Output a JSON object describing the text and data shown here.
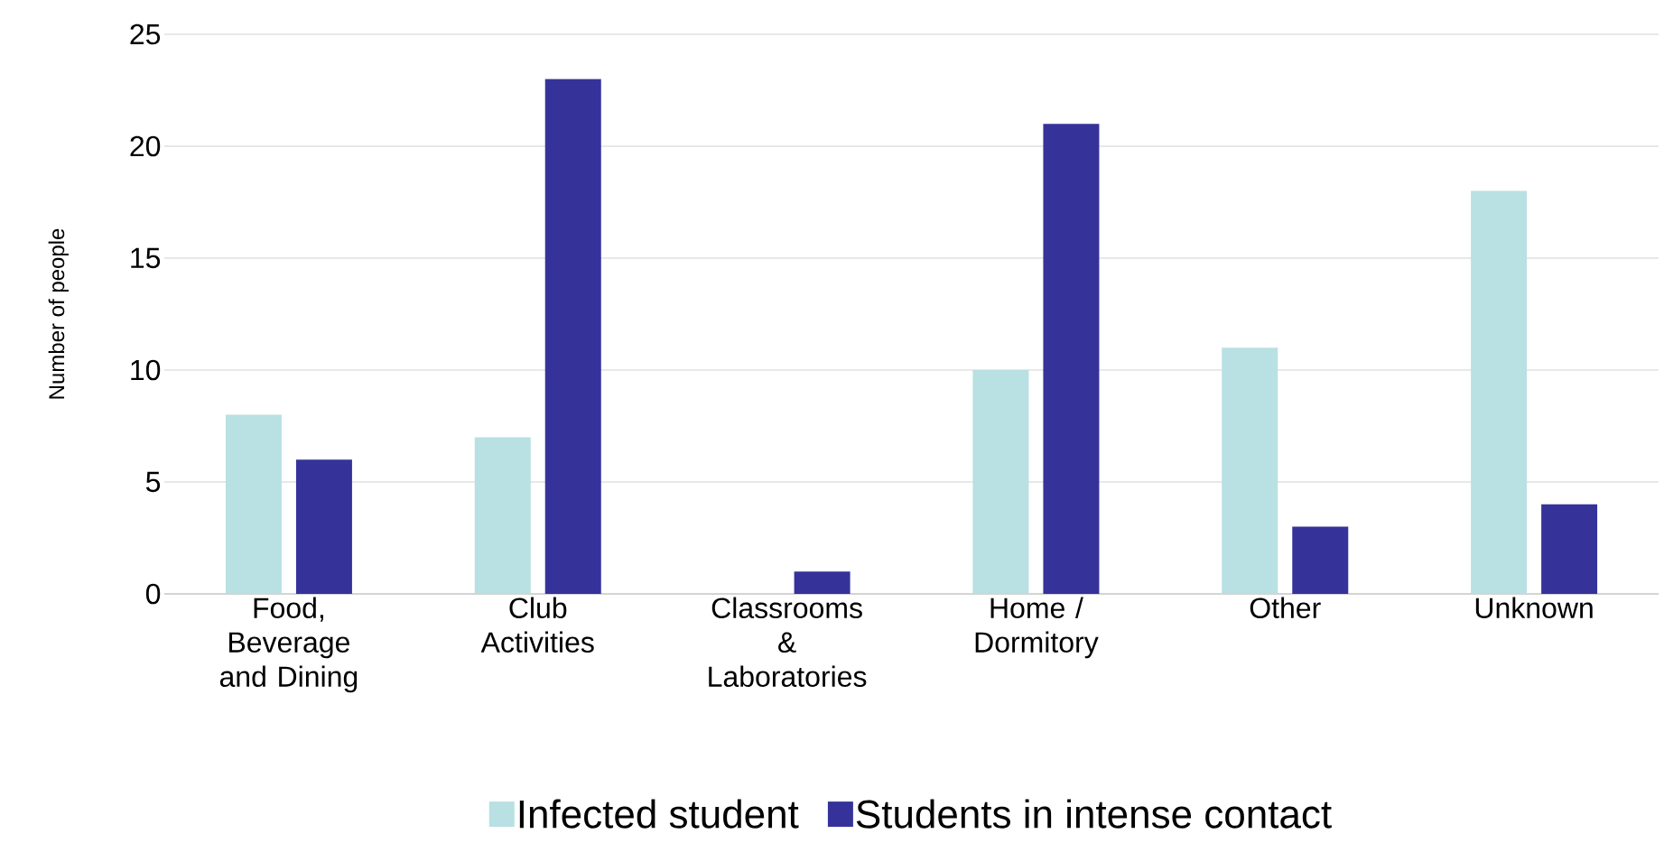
{
  "chart_data": {
    "type": "bar",
    "ylabel": "Number of people",
    "categories": [
      "Food, Beverage and Dining",
      "Club Activities",
      "Classrooms & Laboratories",
      "Home / Dormitory",
      "Other",
      "Unknown"
    ],
    "series": [
      {
        "name": "Infected student",
        "color": "#b9e0e2",
        "values": [
          8,
          7,
          0,
          10,
          11,
          18
        ]
      },
      {
        "name": "Students in intense contact",
        "color": "#35339a",
        "values": [
          6,
          23,
          1,
          21,
          3,
          4
        ]
      }
    ],
    "ylim": [
      0,
      25
    ],
    "yticks": [
      0,
      5,
      10,
      15,
      20,
      25
    ],
    "grid": "y",
    "legend": "bottom"
  }
}
